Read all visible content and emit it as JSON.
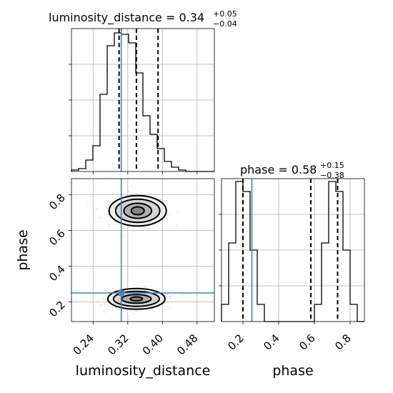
{
  "chart_data": {
    "type": "corner",
    "parameters": [
      "luminosity_distance",
      "phase"
    ],
    "truths": {
      "luminosity_distance": 0.305,
      "phase": 0.25
    },
    "panels": [
      {
        "name": "luminosity_distance-1d",
        "type": "histogram",
        "title_prefix": "luminosity_distance = ",
        "title_value": "0.34",
        "title_upper": "+0.05",
        "title_lower": "−0.04",
        "xlim": [
          0.19,
          0.52
        ],
        "bin_edges": [
          0.19,
          0.2065,
          0.223,
          0.2395,
          0.256,
          0.2725,
          0.289,
          0.3055,
          0.322,
          0.3385,
          0.355,
          0.3715,
          0.388,
          0.4045,
          0.421,
          0.4375,
          0.454,
          0.4705,
          0.487,
          0.5035,
          0.52
        ],
        "counts": [
          1,
          2,
          8,
          18,
          54,
          88,
          97,
          96,
          90,
          69,
          39,
          26,
          16,
          7,
          3,
          1,
          0,
          0,
          0,
          0
        ],
        "ylim": [
          0,
          100
        ],
        "quantiles": [
          0.3,
          0.34,
          0.39
        ]
      },
      {
        "name": "phase-1d",
        "type": "histogram",
        "title_prefix": "phase = ",
        "title_value": "0.58",
        "title_upper": "+0.15",
        "title_lower": "−0.38",
        "xlim": [
          0.08,
          0.88
        ],
        "bin_edges": [
          0.08,
          0.12,
          0.16,
          0.2,
          0.24,
          0.28,
          0.32,
          0.36,
          0.4,
          0.44,
          0.48,
          0.52,
          0.56,
          0.6,
          0.64,
          0.68,
          0.72,
          0.76,
          0.8,
          0.84,
          0.88
        ],
        "counts": [
          12,
          55,
          98,
          91,
          50,
          12,
          0,
          0,
          0,
          0,
          0,
          0,
          0,
          12,
          55,
          98,
          91,
          50,
          12,
          0
        ],
        "ylim": [
          0,
          100
        ],
        "quantiles": [
          0.2,
          0.58,
          0.73
        ]
      },
      {
        "name": "joint-2d",
        "type": "contour",
        "xlim": [
          0.19,
          0.52
        ],
        "ylim": [
          0.09,
          0.89
        ],
        "blobs": [
          {
            "cx": 0.343,
            "cy": 0.71,
            "levels": [
              {
                "rx": 0.015,
                "ry": 0.022
              },
              {
                "rx": 0.032,
                "ry": 0.042
              },
              {
                "rx": 0.051,
                "ry": 0.065
              },
              {
                "rx": 0.066,
                "ry": 0.085
              }
            ]
          },
          {
            "cx": 0.34,
            "cy": 0.217,
            "levels": [
              {
                "rx": 0.014,
                "ry": 0.011
              },
              {
                "rx": 0.034,
                "ry": 0.024
              },
              {
                "rx": 0.053,
                "ry": 0.042
              },
              {
                "rx": 0.066,
                "ry": 0.058
              }
            ]
          }
        ]
      }
    ],
    "axes": {
      "x_left": {
        "label": "luminosity_distance",
        "ticks": [
          0.24,
          0.32,
          0.4,
          0.48
        ],
        "tick_labels": [
          "0.24",
          "0.32",
          "0.40",
          "0.48"
        ]
      },
      "x_right": {
        "label": "phase",
        "ticks": [
          0.2,
          0.4,
          0.6,
          0.8
        ],
        "tick_labels": [
          "0.2",
          "0.4",
          "0.6",
          "0.8"
        ]
      },
      "y_joint": {
        "label": "phase",
        "ticks": [
          0.2,
          0.4,
          0.6,
          0.8
        ],
        "tick_labels": [
          "0.2",
          "0.4",
          "0.6",
          "0.8"
        ]
      }
    },
    "colors": {
      "truth": "#4682b4",
      "hist": "#000000",
      "grid": "#b0b0b0",
      "density": "#808080",
      "points": "#9a9a9a"
    },
    "grid": true
  }
}
